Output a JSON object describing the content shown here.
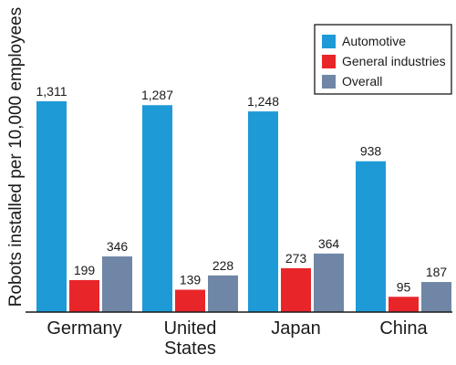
{
  "chart_data": {
    "type": "bar",
    "ylabel": "Robots installed per 10,000 employees",
    "categories": [
      [
        "Germany"
      ],
      [
        "United",
        "States"
      ],
      [
        "Japan"
      ],
      [
        "China"
      ]
    ],
    "series": [
      {
        "name": "Automotive",
        "color": "#1e9ad6",
        "values": [
          1311,
          1287,
          1248,
          938
        ],
        "labels": [
          "1,311",
          "1,287",
          "1,248",
          "938"
        ]
      },
      {
        "name": "General industries",
        "color": "#e8262a",
        "values": [
          199,
          139,
          273,
          95
        ],
        "labels": [
          "199",
          "139",
          "273",
          "95"
        ]
      },
      {
        "name": "Overall",
        "color": "#6f86a6",
        "values": [
          346,
          228,
          364,
          187
        ],
        "labels": [
          "346",
          "228",
          "364",
          "187"
        ]
      }
    ],
    "ylim": [
      0,
      1450
    ],
    "grid": false,
    "legend_position": "top-right"
  }
}
